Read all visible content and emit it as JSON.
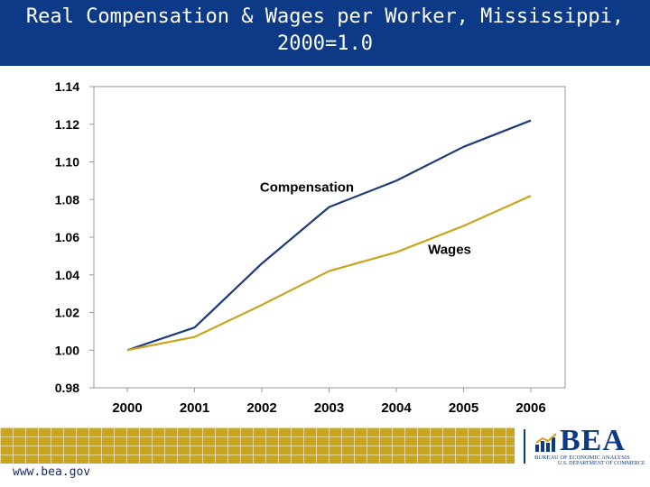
{
  "slide": {
    "title_line1": "Real Compensation & Wages per Worker, Mississippi,",
    "title_line2": "2000=1.0",
    "url": "www.bea.gov"
  },
  "logo": {
    "text": "BEA",
    "subtitle": "BUREAU OF ECONOMIC ANALYSIS",
    "department": "U.S. DEPARTMENT OF COMMERCE"
  },
  "colors": {
    "title_bar": "#0d3a86",
    "compensation": "#1f3a7a",
    "wages": "#c9a51e",
    "footer_grid": "#c9a51e"
  },
  "chart_data": {
    "type": "line",
    "title": "",
    "xlabel": "",
    "ylabel": "",
    "ylim": [
      0.98,
      1.14
    ],
    "yticks": [
      "1.14",
      "1.12",
      "1.10",
      "1.08",
      "1.06",
      "1.04",
      "1.02",
      "1.00",
      "0.98"
    ],
    "categories": [
      "2000",
      "2001",
      "2002",
      "2003",
      "2004",
      "2005",
      "2006"
    ],
    "series": [
      {
        "name": "Compensation",
        "values": [
          1.0,
          1.012,
          1.046,
          1.076,
          1.09,
          1.108,
          1.122
        ]
      },
      {
        "name": "Wages",
        "values": [
          1.0,
          1.007,
          1.024,
          1.042,
          1.052,
          1.066,
          1.082
        ]
      }
    ],
    "grid": false,
    "legend": "inline labels"
  }
}
